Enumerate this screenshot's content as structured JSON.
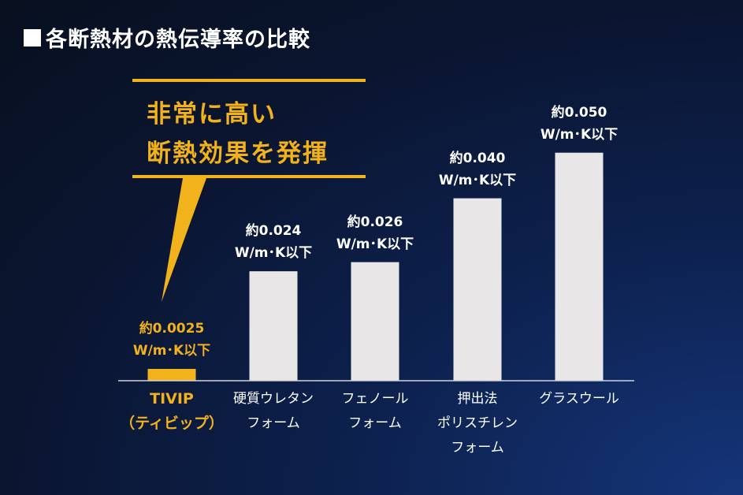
{
  "title": "各断熱材の熱伝導率の比較",
  "callout": {
    "line1": "非常に高い",
    "line2": "断熱効果を発揮"
  },
  "colors": {
    "highlight": "#f2b21b",
    "bar": "#e8e6e6",
    "axis": "#cfd3da"
  },
  "chart_data": {
    "type": "bar",
    "title": "各断熱材の熱伝導率の比較",
    "ylim": [
      0,
      0.056
    ],
    "bars": [
      {
        "name_lines": [
          "TIVIP",
          "（ティビップ）"
        ],
        "value": 0.0025,
        "label_line1": "約0.0025",
        "label_line2": "W/m･K以下",
        "highlight": true
      },
      {
        "name_lines": [
          "硬質ウレタン",
          "フォーム"
        ],
        "value": 0.024,
        "label_line1": "約0.024",
        "label_line2": "W/m･K以下",
        "highlight": false
      },
      {
        "name_lines": [
          "フェノール",
          "フォーム"
        ],
        "value": 0.026,
        "label_line1": "約0.026",
        "label_line2": "W/m･K以下",
        "highlight": false
      },
      {
        "name_lines": [
          "押出法",
          "ポリスチレン",
          "フォーム"
        ],
        "value": 0.04,
        "label_line1": "約0.040",
        "label_line2": "W/m･K以下",
        "highlight": false
      },
      {
        "name_lines": [
          "グラスウール"
        ],
        "value": 0.05,
        "label_line1": "約0.050",
        "label_line2": "W/m･K以下",
        "highlight": false
      }
    ]
  }
}
